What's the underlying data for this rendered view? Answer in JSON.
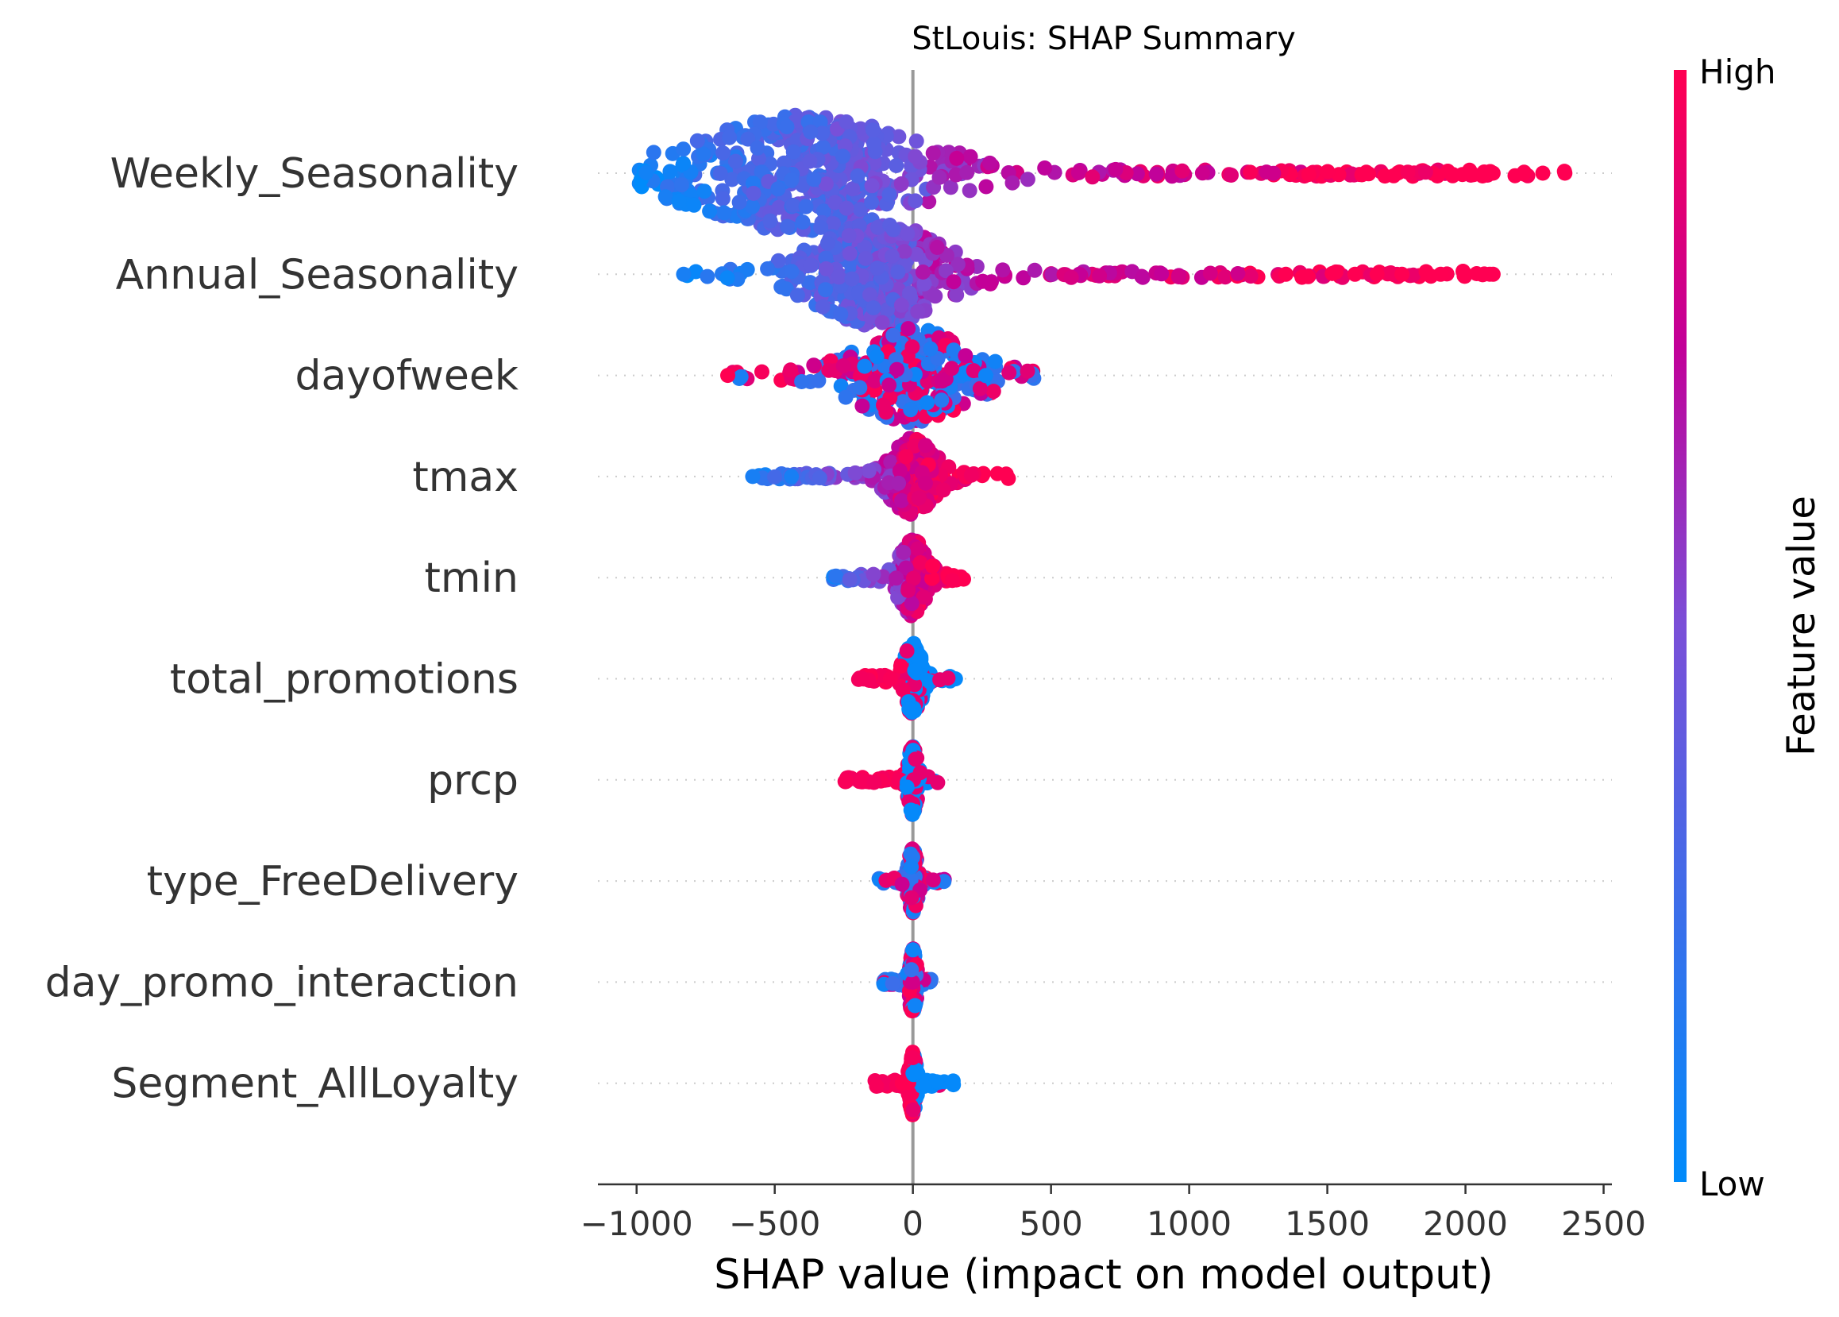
{
  "chart_data": {
    "type": "scatter",
    "subtype": "shap-beeswarm",
    "title": "StLouis: SHAP Summary",
    "xlabel": "SHAP value (impact on model output)",
    "ylabel": "",
    "xlim": [
      -1140,
      2530
    ],
    "xticks": [
      -1000,
      -500,
      0,
      500,
      1000,
      1500,
      2000,
      2500
    ],
    "xtick_labels": [
      "−1000",
      "−500",
      "0",
      "500",
      "1000",
      "1500",
      "2000",
      "2500"
    ],
    "zero_line": 0,
    "colorbar": {
      "title": "Feature value",
      "high_label": "High",
      "low_label": "Low",
      "low_color": "#008bfb",
      "high_color": "#ff0052"
    },
    "features": [
      {
        "name": "Weekly_Seasonality",
        "min": -990,
        "max": 2370,
        "core_lo": -900,
        "core_hi": 100,
        "spread": 0.55,
        "color_mode": "increasing",
        "color_threshold": 50,
        "outliers": [
          2360,
          2280,
          2210,
          2100
        ]
      },
      {
        "name": "Annual_Seasonality",
        "min": -830,
        "max": 2100,
        "core_lo": -400,
        "core_hi": 150,
        "spread": 0.5,
        "color_mode": "increasing",
        "color_threshold": 0,
        "outliers": [
          -830,
          1350,
          1600,
          1680,
          1770,
          1910,
          2100
        ]
      },
      {
        "name": "dayofweek",
        "min": -670,
        "max": 450,
        "core_lo": -250,
        "core_hi": 250,
        "spread": 0.45,
        "color_mode": "mixed",
        "color_threshold": 0,
        "outliers": [
          -670
        ]
      },
      {
        "name": "tmax",
        "min": -580,
        "max": 350,
        "core_lo": -100,
        "core_hi": 100,
        "spread": 0.35,
        "color_mode": "increasing",
        "color_threshold": -50,
        "outliers": [
          -580,
          -440
        ]
      },
      {
        "name": "tmin",
        "min": -310,
        "max": 210,
        "core_lo": -60,
        "core_hi": 60,
        "spread": 0.35,
        "color_mode": "increasing",
        "color_threshold": -20,
        "outliers": []
      },
      {
        "name": "total_promotions",
        "min": -200,
        "max": 160,
        "core_lo": -40,
        "core_hi": 40,
        "spread": 0.32,
        "color_mode": "decreasing",
        "color_threshold": -30,
        "outliers": []
      },
      {
        "name": "prcp",
        "min": -250,
        "max": 90,
        "core_lo": -20,
        "core_hi": 20,
        "spread": 0.32,
        "color_mode": "decreasing",
        "color_threshold": -30,
        "outliers": []
      },
      {
        "name": "type_FreeDelivery",
        "min": -130,
        "max": 120,
        "core_lo": -20,
        "core_hi": 20,
        "spread": 0.3,
        "color_mode": "mixed",
        "color_threshold": 0,
        "outliers": []
      },
      {
        "name": "day_promo_interaction",
        "min": -110,
        "max": 80,
        "core_lo": -15,
        "core_hi": 15,
        "spread": 0.3,
        "color_mode": "mixed",
        "color_threshold": 0,
        "outliers": []
      },
      {
        "name": "Segment_AllLoyalty",
        "min": -140,
        "max": 150,
        "core_lo": -15,
        "core_hi": 15,
        "spread": 0.3,
        "color_mode": "decreasing",
        "color_threshold": 0,
        "outliers": []
      }
    ]
  }
}
